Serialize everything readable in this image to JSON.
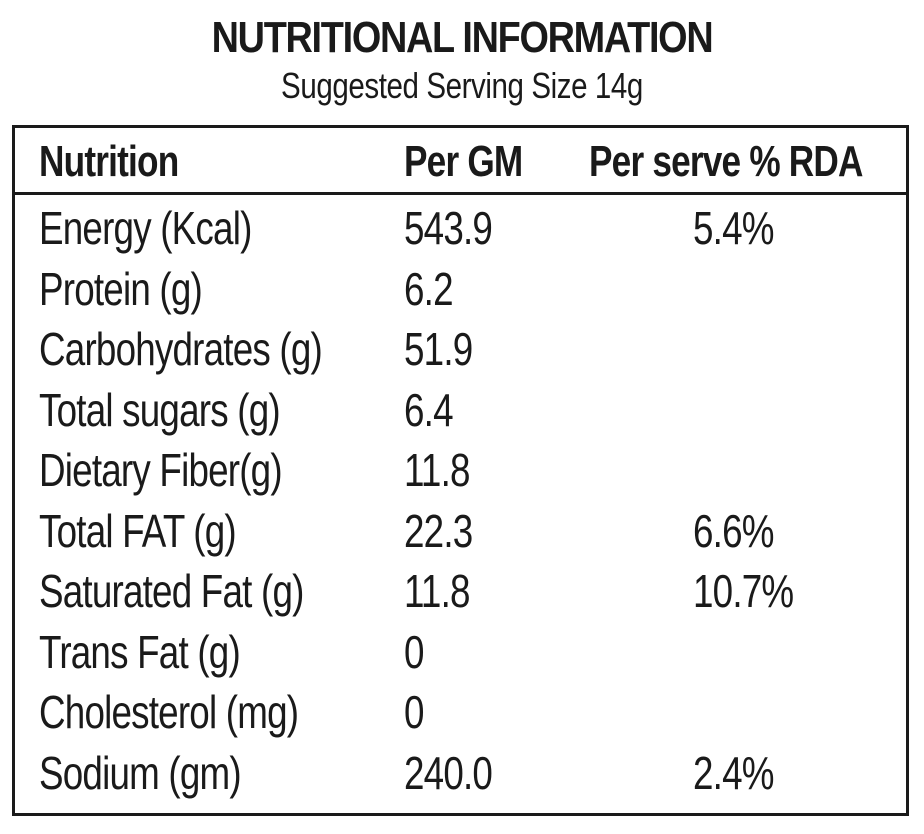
{
  "title": "NUTRITIONAL INFORMATION",
  "subtitle": "Suggested Serving Size 14g",
  "table": {
    "headers": [
      "Nutrition",
      "Per GM",
      "Per serve % RDA"
    ],
    "rows": [
      {
        "name": "Energy (Kcal)",
        "per_gm": "543.9",
        "rda": "5.4%"
      },
      {
        "name": "Protein (g)",
        "per_gm": "6.2",
        "rda": ""
      },
      {
        "name": "Carbohydrates (g)",
        "per_gm": "51.9",
        "rda": ""
      },
      {
        "name": "Total sugars (g)",
        "per_gm": "6.4",
        "rda": ""
      },
      {
        "name": "Dietary Fiber(g)",
        "per_gm": "11.8",
        "rda": ""
      },
      {
        "name": "Total FAT (g)",
        "per_gm": "22.3",
        "rda": "6.6%"
      },
      {
        "name": "Saturated Fat (g)",
        "per_gm": "11.8",
        "rda": "10.7%"
      },
      {
        "name": "Trans Fat (g)",
        "per_gm": "0",
        "rda": ""
      },
      {
        "name": "Cholesterol (mg)",
        "per_gm": "0",
        "rda": ""
      },
      {
        "name": "Sodium (gm)",
        "per_gm": "240.0",
        "rda": "2.4%"
      }
    ]
  }
}
